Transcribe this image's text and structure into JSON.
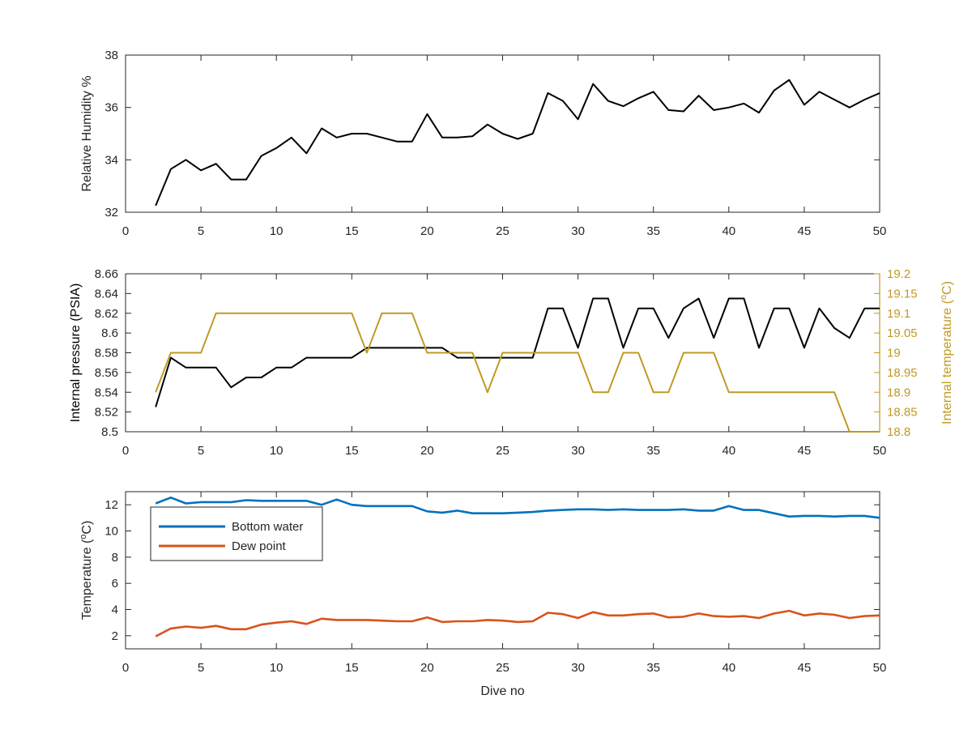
{
  "chart_data": [
    {
      "type": "line",
      "ylabel": "Relative Humidity %",
      "xlim": [
        0,
        50
      ],
      "ylim": [
        32,
        38
      ],
      "xticks": [
        0,
        5,
        10,
        15,
        20,
        25,
        30,
        35,
        40,
        45,
        50
      ],
      "yticks": [
        32,
        34,
        36,
        38
      ],
      "grid": false,
      "series": [
        {
          "color": "#000000",
          "x": [
            2,
            3,
            4,
            5,
            6,
            7,
            8,
            9,
            10,
            11,
            12,
            13,
            14,
            15,
            16,
            17,
            18,
            19,
            20,
            21,
            22,
            23,
            24,
            25,
            26,
            27,
            28,
            29,
            30,
            31,
            32,
            33,
            34,
            35,
            36,
            37,
            38,
            39,
            40,
            41,
            42,
            43,
            44,
            45,
            46,
            47,
            48,
            49,
            50
          ],
          "values": [
            32.25,
            33.65,
            34.0,
            33.6,
            33.85,
            33.25,
            33.25,
            34.15,
            34.45,
            34.85,
            34.25,
            35.2,
            34.85,
            35.0,
            35.0,
            34.85,
            34.7,
            34.7,
            35.75,
            34.85,
            34.85,
            34.9,
            35.35,
            35.0,
            34.8,
            35.0,
            36.55,
            36.25,
            35.55,
            36.9,
            36.25,
            36.05,
            36.35,
            36.6,
            35.9,
            35.85,
            36.45,
            35.9,
            36.0,
            36.15,
            35.8,
            36.65,
            37.05,
            36.1,
            36.6,
            36.3,
            36.0,
            36.3,
            36.55
          ]
        }
      ]
    },
    {
      "type": "line",
      "ylabel": "Internal pressure (PSIA)",
      "y2label": "Internal temperature (°C)",
      "xlim": [
        0,
        50
      ],
      "ylim": [
        8.5,
        8.66
      ],
      "y2lim": [
        18.8,
        19.2
      ],
      "xticks": [
        0,
        5,
        10,
        15,
        20,
        25,
        30,
        35,
        40,
        45,
        50
      ],
      "yticks": [
        8.5,
        8.52,
        8.54,
        8.56,
        8.58,
        8.6,
        8.62,
        8.64,
        8.66
      ],
      "ytick_labels": [
        "8.5",
        "8.52",
        "8.54",
        "8.56",
        "8.58",
        "8.6",
        "8.62",
        "8.64",
        "8.66"
      ],
      "y2ticks": [
        18.8,
        18.85,
        18.9,
        18.95,
        19.0,
        19.05,
        19.1,
        19.15,
        19.2
      ],
      "y2tick_labels": [
        "18.8",
        "18.85",
        "18.9",
        "18.95",
        "19",
        "19.05",
        "19.1",
        "19.15",
        "19.2"
      ],
      "grid": false,
      "series": [
        {
          "axis": "left",
          "color": "#000000",
          "x": [
            2,
            3,
            4,
            5,
            6,
            7,
            8,
            9,
            10,
            11,
            12,
            13,
            14,
            15,
            16,
            17,
            18,
            19,
            20,
            21,
            22,
            23,
            24,
            25,
            26,
            27,
            28,
            29,
            30,
            31,
            32,
            33,
            34,
            35,
            36,
            37,
            38,
            39,
            40,
            41,
            42,
            43,
            44,
            45,
            46,
            47,
            48,
            49,
            50
          ],
          "values": [
            8.525,
            8.575,
            8.565,
            8.565,
            8.565,
            8.545,
            8.555,
            8.555,
            8.565,
            8.565,
            8.575,
            8.575,
            8.575,
            8.575,
            8.585,
            8.585,
            8.585,
            8.585,
            8.585,
            8.585,
            8.575,
            8.575,
            8.575,
            8.575,
            8.575,
            8.575,
            8.625,
            8.625,
            8.585,
            8.635,
            8.635,
            8.585,
            8.625,
            8.625,
            8.595,
            8.625,
            8.635,
            8.595,
            8.635,
            8.635,
            8.585,
            8.625,
            8.625,
            8.585,
            8.625,
            8.605,
            8.595,
            8.625,
            8.625
          ]
        },
        {
          "axis": "right",
          "color": "#C09A22",
          "x": [
            2,
            3,
            4,
            5,
            6,
            7,
            8,
            9,
            10,
            11,
            12,
            13,
            14,
            15,
            16,
            17,
            18,
            19,
            20,
            21,
            22,
            23,
            24,
            25,
            26,
            27,
            28,
            29,
            30,
            31,
            32,
            33,
            34,
            35,
            36,
            37,
            38,
            39,
            40,
            41,
            42,
            43,
            44,
            45,
            46,
            47,
            48,
            49,
            50
          ],
          "values": [
            18.9,
            19.0,
            19.0,
            19.0,
            19.1,
            19.1,
            19.1,
            19.1,
            19.1,
            19.1,
            19.1,
            19.1,
            19.1,
            19.1,
            19.0,
            19.1,
            19.1,
            19.1,
            19.0,
            19.0,
            19.0,
            19.0,
            18.9,
            19.0,
            19.0,
            19.0,
            19.0,
            19.0,
            19.0,
            18.9,
            18.9,
            19.0,
            19.0,
            18.9,
            18.9,
            19.0,
            19.0,
            19.0,
            18.9,
            18.9,
            18.9,
            18.9,
            18.9,
            18.9,
            18.9,
            18.9,
            18.8,
            18.8,
            18.8
          ]
        }
      ]
    },
    {
      "type": "line",
      "xlabel": "Dive no",
      "ylabel": "Temperature (°C)",
      "xlim": [
        0,
        50
      ],
      "ylim": [
        1,
        13
      ],
      "xticks": [
        0,
        5,
        10,
        15,
        20,
        25,
        30,
        35,
        40,
        45,
        50
      ],
      "yticks": [
        2,
        4,
        6,
        8,
        10,
        12
      ],
      "grid": false,
      "legend_position": "top-left",
      "series": [
        {
          "name": "Bottom water",
          "color": "#0072BD",
          "x": [
            2,
            3,
            4,
            5,
            6,
            7,
            8,
            9,
            10,
            11,
            12,
            13,
            14,
            15,
            16,
            17,
            18,
            19,
            20,
            21,
            22,
            23,
            24,
            25,
            26,
            27,
            28,
            29,
            30,
            31,
            32,
            33,
            34,
            35,
            36,
            37,
            38,
            39,
            40,
            41,
            42,
            43,
            44,
            45,
            46,
            47,
            48,
            49,
            50
          ],
          "values": [
            12.1,
            12.55,
            12.1,
            12.2,
            12.2,
            12.2,
            12.35,
            12.3,
            12.3,
            12.3,
            12.3,
            12.0,
            12.4,
            12.0,
            11.9,
            11.9,
            11.9,
            11.9,
            11.5,
            11.4,
            11.55,
            11.35,
            11.35,
            11.35,
            11.4,
            11.45,
            11.55,
            11.6,
            11.65,
            11.65,
            11.6,
            11.65,
            11.6,
            11.6,
            11.6,
            11.65,
            11.55,
            11.55,
            11.9,
            11.6,
            11.6,
            11.35,
            11.1,
            11.15,
            11.15,
            11.1,
            11.15,
            11.15,
            11.0
          ]
        },
        {
          "name": "Dew point",
          "color": "#D95319",
          "x": [
            2,
            3,
            4,
            5,
            6,
            7,
            8,
            9,
            10,
            11,
            12,
            13,
            14,
            15,
            16,
            17,
            18,
            19,
            20,
            21,
            22,
            23,
            24,
            25,
            26,
            27,
            28,
            29,
            30,
            31,
            32,
            33,
            34,
            35,
            36,
            37,
            38,
            39,
            40,
            41,
            42,
            43,
            44,
            45,
            46,
            47,
            48,
            49,
            50
          ],
          "values": [
            1.95,
            2.55,
            2.7,
            2.6,
            2.75,
            2.5,
            2.5,
            2.85,
            3.0,
            3.1,
            2.9,
            3.3,
            3.2,
            3.2,
            3.2,
            3.15,
            3.1,
            3.1,
            3.4,
            3.05,
            3.1,
            3.1,
            3.2,
            3.15,
            3.05,
            3.1,
            3.75,
            3.65,
            3.35,
            3.8,
            3.55,
            3.55,
            3.65,
            3.7,
            3.4,
            3.45,
            3.7,
            3.5,
            3.45,
            3.5,
            3.35,
            3.7,
            3.9,
            3.55,
            3.7,
            3.6,
            3.35,
            3.5,
            3.55
          ]
        }
      ]
    }
  ]
}
